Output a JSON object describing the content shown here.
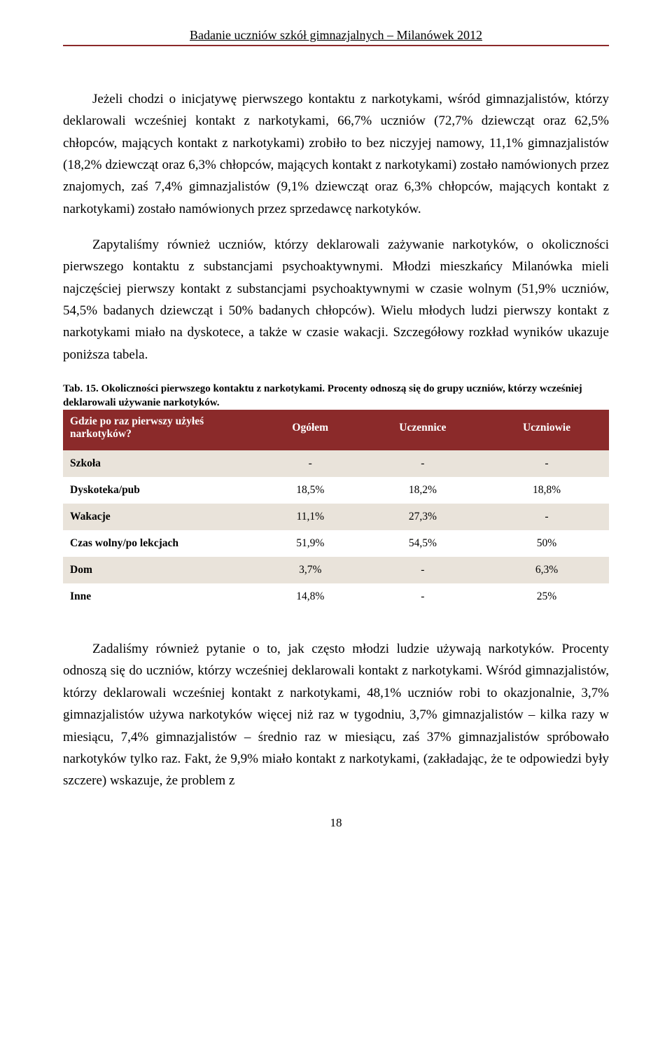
{
  "header": "Badanie uczniów szkół gimnazjalnych – Milanówek 2012",
  "para1": "Jeżeli chodzi o inicjatywę pierwszego kontaktu z narkotykami, wśród gimnazjalistów, którzy deklarowali wcześniej kontakt z narkotykami, 66,7% uczniów (72,7% dziewcząt oraz 62,5% chłopców, mających kontakt z narkotykami) zrobiło to bez niczyjej namowy, 11,1% gimnazjalistów (18,2% dziewcząt oraz 6,3% chłopców, mających kontakt z narkotykami) zostało namówionych przez znajomych, zaś 7,4% gimnazjalistów (9,1% dziewcząt oraz 6,3% chłopców, mających kontakt z narkotykami) zostało namówionych przez sprzedawcę narkotyków.",
  "para2": "Zapytaliśmy również uczniów, którzy deklarowali zażywanie narkotyków, o okoliczności pierwszego kontaktu z substancjami psychoaktywnymi. Młodzi mieszkańcy Milanówka mieli najczęściej pierwszy kontakt z substancjami psychoaktywnymi w czasie wolnym (51,9% uczniów, 54,5% badanych dziewcząt i 50% badanych chłopców). Wielu młodych ludzi pierwszy kontakt z narkotykami miało na dyskotece, a także w czasie wakacji. Szczegółowy rozkład wyników ukazuje poniższa tabela.",
  "table": {
    "caption": "Tab. 15. Okoliczności pierwszego kontaktu z narkotykami. Procenty odnoszą się do grupy uczniów, którzy wcześniej deklarowali używanie narkotyków.",
    "head_question": "Gdzie po raz pierwszy użyłeś narkotyków?",
    "columns": [
      "Ogółem",
      "Uczennice",
      "Uczniowie"
    ],
    "rows": [
      {
        "label": "Szkoła",
        "vals": [
          "-",
          "-",
          "-"
        ],
        "shade": true
      },
      {
        "label": "Dyskoteka/pub",
        "vals": [
          "18,5%",
          "18,2%",
          "18,8%"
        ],
        "shade": false
      },
      {
        "label": "Wakacje",
        "vals": [
          "11,1%",
          "27,3%",
          "-"
        ],
        "shade": true
      },
      {
        "label": "Czas wolny/po lekcjach",
        "vals": [
          "51,9%",
          "54,5%",
          "50%"
        ],
        "shade": false
      },
      {
        "label": "Dom",
        "vals": [
          "3,7%",
          "-",
          "6,3%"
        ],
        "shade": true
      },
      {
        "label": "Inne",
        "vals": [
          "14,8%",
          "-",
          "25%"
        ],
        "shade": false
      }
    ]
  },
  "para3": "Zadaliśmy również pytanie o to, jak często młodzi ludzie używają narkotyków. Procenty odnoszą się do uczniów, którzy wcześniej deklarowali kontakt z narkotykami. Wśród gimnazjalistów, którzy deklarowali wcześniej kontakt z narkotykami, 48,1% uczniów robi to okazjonalnie, 3,7% gimnazjalistów używa narkotyków więcej niż raz w tygodniu, 3,7% gimnazjalistów – kilka razy w miesiącu, 7,4% gimnazjalistów – średnio raz w miesiącu, zaś 37% gimnazjalistów spróbowało narkotyków tylko raz. Fakt, że 9,9% miało kontakt z narkotykami, (zakładając, że te odpowiedzi były szczere) wskazuje, że problem z",
  "page_number": "18",
  "colors": {
    "header_rule": "#8b2a2a",
    "table_header_bg": "#8b2a2a",
    "table_header_fg": "#ffffff",
    "row_shade": "#e9e3da"
  }
}
